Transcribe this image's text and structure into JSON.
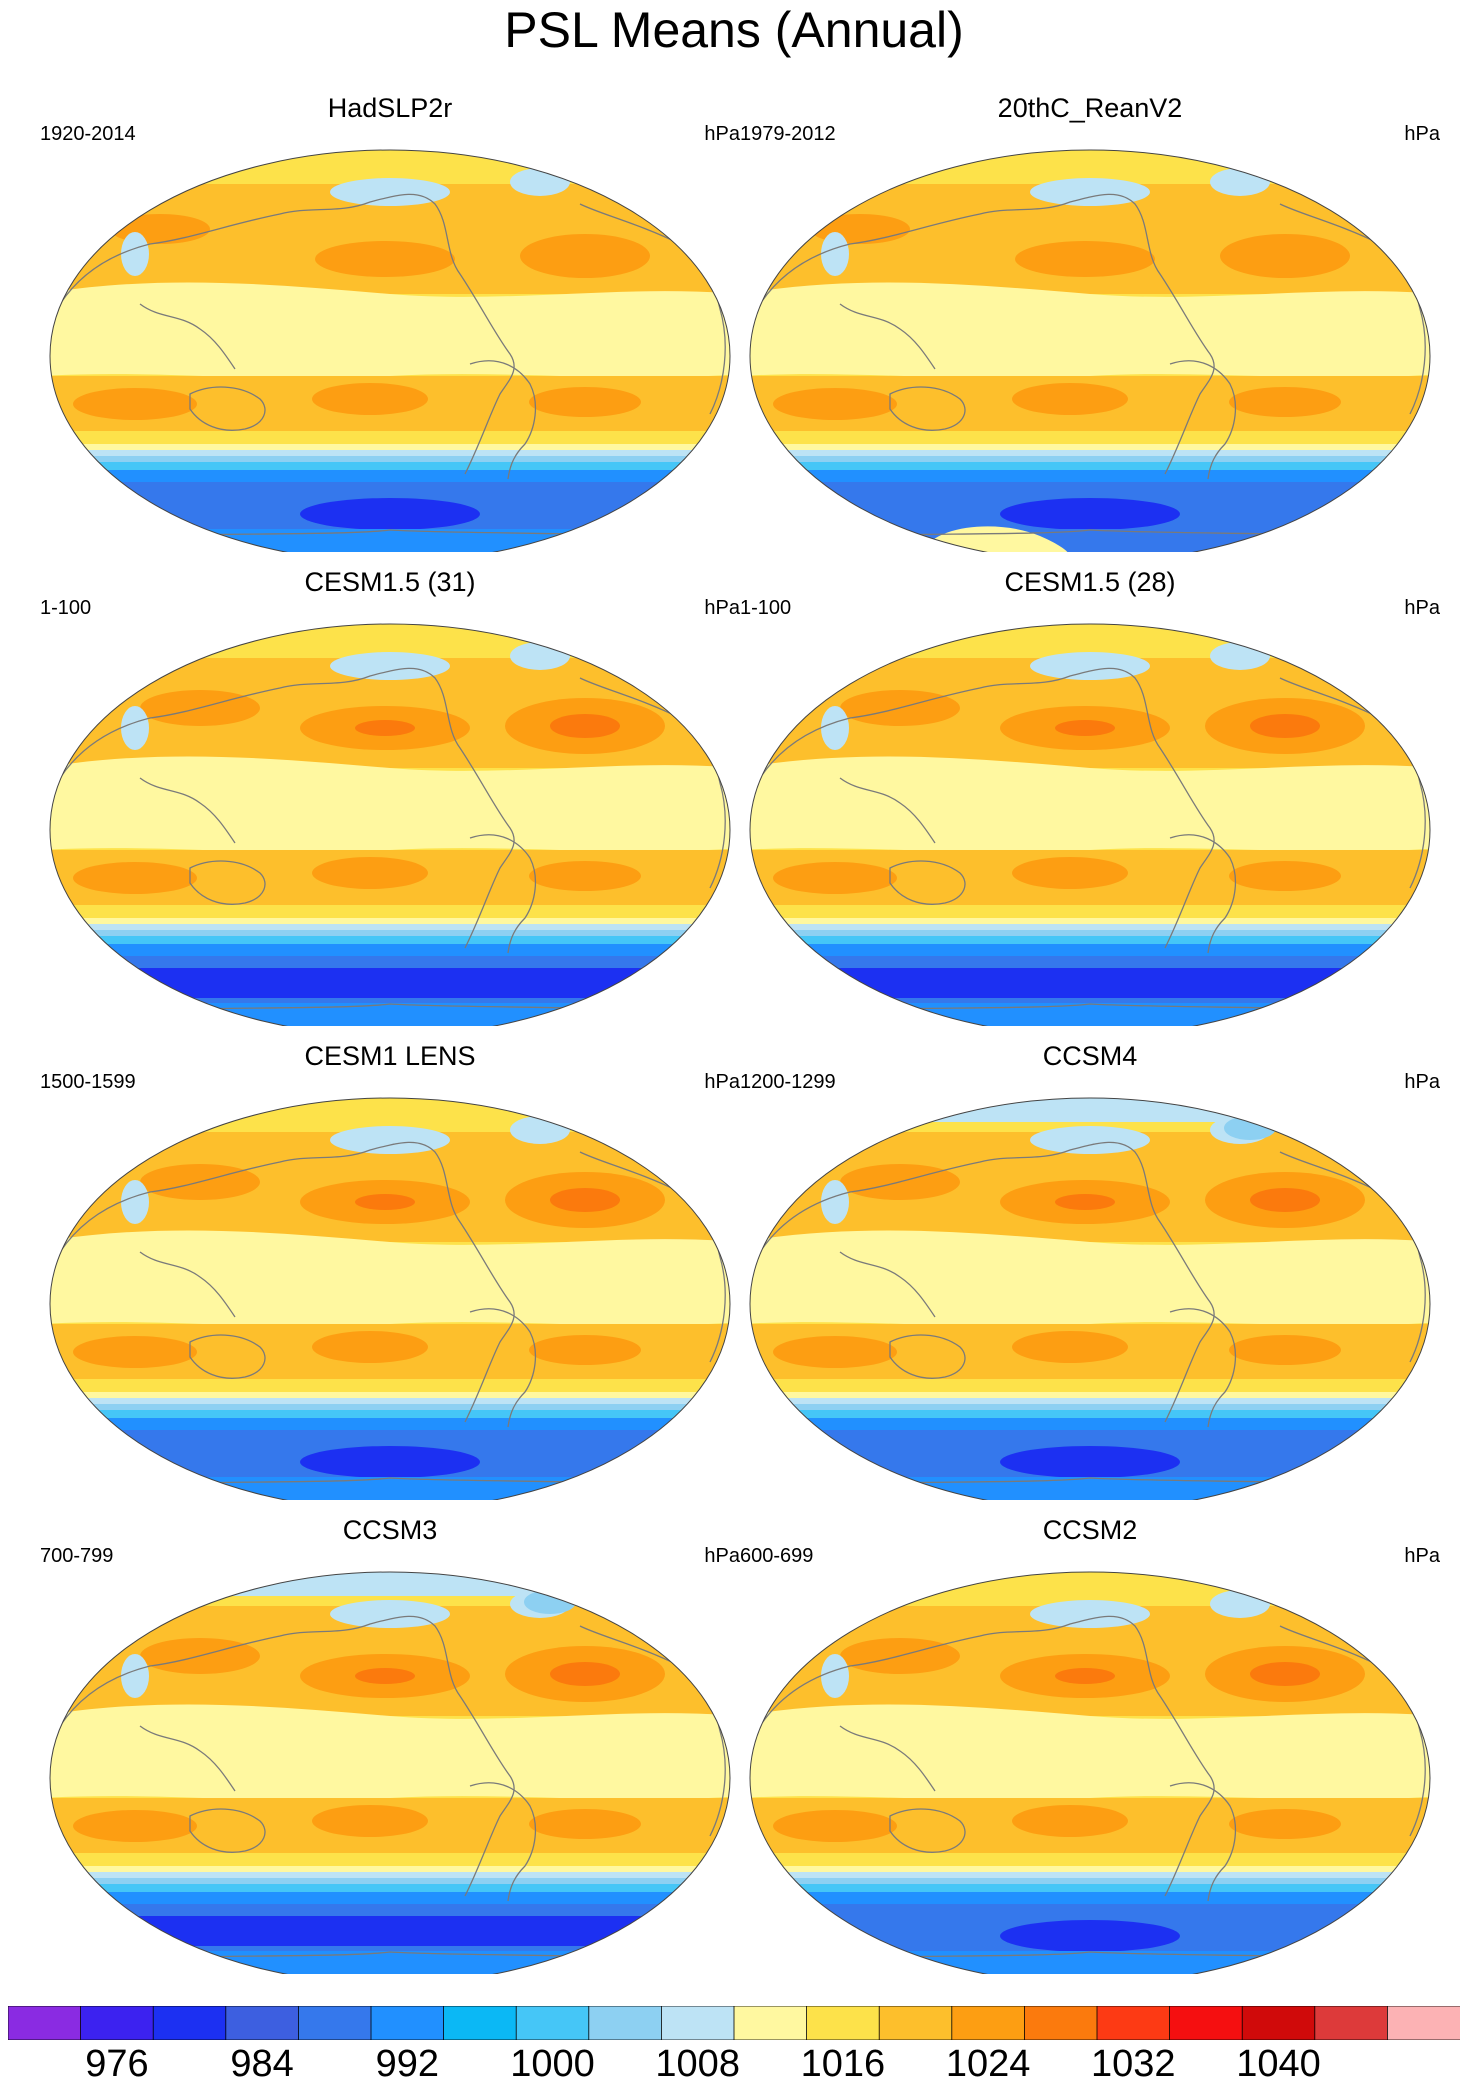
{
  "title": "PSL Means (Annual)",
  "units": "hPa",
  "panels": [
    {
      "name": "HadSLP2r",
      "period": "1920-2014",
      "antarctic": "low",
      "variant": "obs"
    },
    {
      "name": "20thC_ReanV2",
      "period": "1979-2012",
      "antarctic": "reanalysis",
      "variant": "obs"
    },
    {
      "name": "CESM1.5 (31)",
      "period": "1-100",
      "antarctic": "deep",
      "variant": "model"
    },
    {
      "name": "CESM1.5 (28)",
      "period": "1-100",
      "antarctic": "deep",
      "variant": "model"
    },
    {
      "name": "CESM1 LENS",
      "period": "1500-1599",
      "antarctic": "low",
      "variant": "model"
    },
    {
      "name": "CCSM4",
      "period": "1200-1299",
      "antarctic": "low",
      "variant": "model"
    },
    {
      "name": "CCSM3",
      "period": "700-799",
      "antarctic": "deep",
      "variant": "model"
    },
    {
      "name": "CCSM2",
      "period": "600-699",
      "antarctic": "low",
      "variant": "model"
    }
  ],
  "colorbar": {
    "colors": [
      "#8a2be2",
      "#3c22f0",
      "#1c30f2",
      "#3d5fe0",
      "#3578ec",
      "#2190ff",
      "#0bb8f5",
      "#45c6f7",
      "#8dd0f2",
      "#bde3f5",
      "#fff8a0",
      "#fde24a",
      "#fdbf2c",
      "#fd9e12",
      "#fb7a0d",
      "#fd3a14",
      "#f50f10",
      "#d00a0a",
      "#dd3a3a",
      "#fcb2b4"
    ],
    "labels": [
      "976",
      "984",
      "992",
      "1000",
      "1008",
      "1016",
      "1024",
      "1032",
      "1040"
    ],
    "label_boundaries": [
      2,
      4,
      6,
      8,
      10,
      12,
      14,
      16,
      18
    ]
  },
  "palette": {
    "ocean_sub": "#fdbf2c",
    "ocean_mid": "#fde24a",
    "equator": "#fff8a0",
    "high": "#fd9e12",
    "high_core": "#fb7a0d",
    "low1": "#bde3f5",
    "low2": "#8dd0f2",
    "low3": "#45c6f7",
    "low4": "#2190ff",
    "low5": "#3578ec",
    "low6": "#1c30f2",
    "coast": "#7a7a7a"
  }
}
